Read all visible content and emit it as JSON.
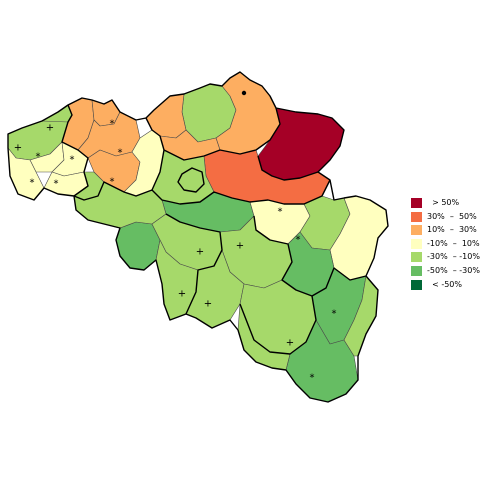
{
  "colors": {
    "gt50": "#a50026",
    "30to50": "#f46d43",
    "10to30": "#fdae61",
    "m10to10": "#ffffbf",
    "m30tom10": "#a6d96a",
    "m50tom30": "#66bd63",
    "ltm50": "#006837"
  },
  "legend": {
    "items": [
      {
        "label": "  > 50%",
        "color_key": "gt50"
      },
      {
        "label": "30%  –  50%",
        "color_key": "30to50"
      },
      {
        "label": "10%  –  30%",
        "color_key": "10to30"
      },
      {
        "label": "-10%  –  10%",
        "color_key": "m10to10"
      },
      {
        "label": "-30%  – -10%",
        "color_key": "m30tom10"
      },
      {
        "label": "-50%  – -30%",
        "color_key": "m50tom30"
      },
      {
        "label": "  < -50%",
        "color_key": "ltm50"
      }
    ]
  },
  "regions": [
    {
      "id": "r01",
      "category": "m30tom10",
      "marker": "+"
    },
    {
      "id": "r02",
      "category": "m30tom10",
      "marker": "+"
    },
    {
      "id": "r03",
      "category": "m10to10",
      "marker": "*"
    },
    {
      "id": "r04",
      "category": "m10to10",
      "marker": "*"
    },
    {
      "id": "r05",
      "category": "10to30",
      "marker": ""
    },
    {
      "id": "r06",
      "category": "m10to10",
      "marker": "*"
    },
    {
      "id": "r07",
      "category": "m10to10",
      "marker": "*"
    },
    {
      "id": "r08",
      "category": "10to30",
      "marker": ""
    },
    {
      "id": "r09",
      "category": "m30tom10",
      "marker": ""
    },
    {
      "id": "r10",
      "category": "10to30",
      "marker": ""
    },
    {
      "id": "r11",
      "category": "10to30",
      "marker": ""
    },
    {
      "id": "r12",
      "category": "m10to10",
      "marker": ""
    },
    {
      "id": "r13",
      "category": "m30tom10",
      "marker": ""
    },
    {
      "id": "r14",
      "category": "10to30",
      "marker": ""
    },
    {
      "id": "r15",
      "category": "gt50",
      "marker": ""
    },
    {
      "id": "r16",
      "category": "30to50",
      "marker": ""
    },
    {
      "id": "r17",
      "category": "m50tom30",
      "marker": ""
    },
    {
      "id": "r18",
      "category": "m30tom10",
      "marker": ""
    },
    {
      "id": "r19",
      "category": "m50tom30",
      "marker": ""
    },
    {
      "id": "r20",
      "category": "m10to10",
      "marker": "*"
    },
    {
      "id": "r21",
      "category": "m30tom10",
      "marker": ""
    },
    {
      "id": "r22",
      "category": "m10to10",
      "marker": ""
    },
    {
      "id": "r23",
      "category": "m50tom30",
      "marker": ""
    },
    {
      "id": "r24",
      "category": "m30tom10",
      "marker": "*"
    },
    {
      "id": "r25",
      "category": "m30tom10",
      "marker": "+"
    },
    {
      "id": "r26",
      "category": "m30tom10",
      "marker": "+"
    },
    {
      "id": "r27",
      "category": "m30tom10",
      "marker": "+"
    },
    {
      "id": "r28",
      "category": "m30tom10",
      "marker": "+"
    },
    {
      "id": "r29",
      "category": "m50tom30",
      "marker": "*"
    },
    {
      "id": "r30",
      "category": "m30tom10",
      "marker": "+"
    },
    {
      "id": "r31",
      "category": "m50tom30",
      "marker": "*"
    },
    {
      "id": "r32",
      "category": "m50tom30",
      "marker": "*"
    },
    {
      "id": "r33",
      "category": "m30tom10",
      "marker": ""
    },
    {
      "id": "r34",
      "category": "m30tom10",
      "marker": ""
    }
  ]
}
